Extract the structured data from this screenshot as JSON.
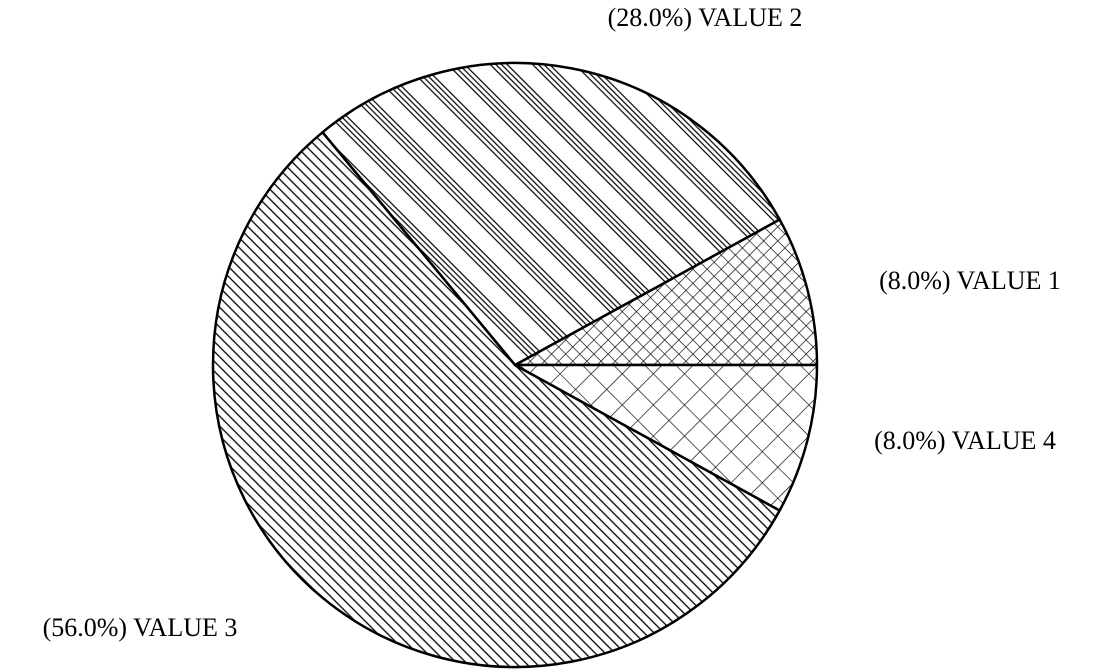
{
  "chart_data": {
    "type": "pie",
    "categories": [
      "VALUE 1",
      "VALUE 2",
      "VALUE 3",
      "VALUE 4"
    ],
    "values": [
      8.0,
      28.0,
      56.0,
      8.0
    ],
    "value_labels": [
      "(8.0%)",
      "(28.0%)",
      "(56.0%)",
      "(8.0%)"
    ]
  }
}
